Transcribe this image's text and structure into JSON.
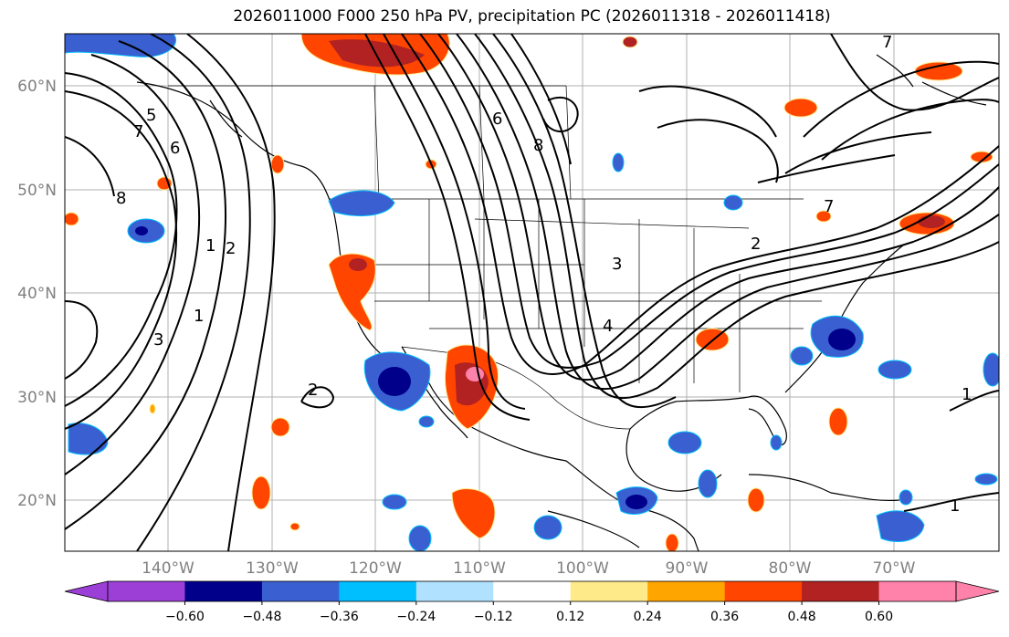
{
  "title": "2026011000 F000 250 hPa PV, precipitation PC (2026011318 - 2026011418)",
  "latitude_labels": [
    "60°N",
    "50°N",
    "40°N",
    "30°N",
    "20°N"
  ],
  "longitude_labels": [
    "140°W",
    "130°W",
    "120°W",
    "110°W",
    "100°W",
    "90°W",
    "80°W",
    "70°W"
  ],
  "colorbar": {
    "tick_labels": [
      "−0.60",
      "−0.48",
      "−0.36",
      "−0.24",
      "−0.12",
      "0.12",
      "0.24",
      "0.36",
      "0.48",
      "0.60"
    ],
    "colors": [
      "#9b3fd6",
      "#00008b",
      "#3a5fd0",
      "#00bfff",
      "#b0e2ff",
      "#ffffff",
      "#ffea8a",
      "#ffa500",
      "#ff4500",
      "#b22222",
      "#ff82ab",
      "#ff82ab"
    ]
  },
  "contour_labels": [
    "1",
    "2",
    "3",
    "5",
    "6",
    "7",
    "8",
    "1",
    "2",
    "3",
    "4",
    "6",
    "8",
    "7",
    "2",
    "7",
    "1",
    "1"
  ]
}
